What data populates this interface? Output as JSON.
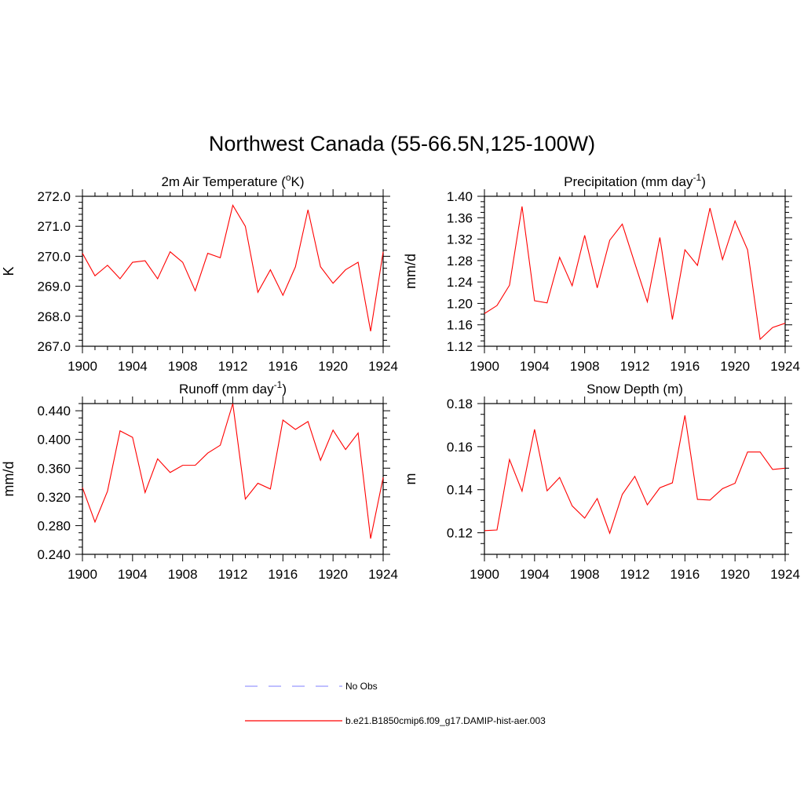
{
  "figure": {
    "title": "Northwest Canada (55-66.5N,125-100W)"
  },
  "legend": {
    "items": [
      {
        "label": "No Obs",
        "color": "#9999ff",
        "style": "dashed"
      },
      {
        "label": "b.e21.B1850cmip6.f09_g17.DAMIP-hist-aer.003",
        "color": "#ff0000",
        "style": "solid"
      }
    ]
  },
  "chart_data": [
    {
      "type": "line",
      "title": "2m Air Temperature (",
      "title_super": "o",
      "title_suffix": "K)",
      "xlabel": "",
      "ylabel": "K",
      "xlim": [
        1900,
        1924
      ],
      "ylim": [
        267.0,
        272.0
      ],
      "x_ticks": [
        1900,
        1904,
        1908,
        1912,
        1916,
        1920,
        1924
      ],
      "y_ticks": [
        267.0,
        268.0,
        269.0,
        270.0,
        271.0,
        272.0
      ],
      "y_decimals": 1,
      "x_minor": 1,
      "y_minor": 0.2,
      "color": "#ff0000",
      "x": [
        1900,
        1901,
        1902,
        1903,
        1904,
        1905,
        1906,
        1907,
        1908,
        1909,
        1910,
        1911,
        1912,
        1913,
        1914,
        1915,
        1916,
        1917,
        1918,
        1919,
        1920,
        1921,
        1922,
        1923,
        1924
      ],
      "values": [
        270.1,
        269.35,
        269.7,
        269.25,
        269.8,
        269.85,
        269.25,
        270.15,
        269.8,
        268.85,
        270.1,
        269.95,
        271.7,
        271.0,
        268.8,
        269.55,
        268.7,
        269.65,
        271.55,
        269.65,
        269.1,
        269.55,
        269.8,
        267.5,
        270.15
      ]
    },
    {
      "type": "line",
      "title": "Precipitation (mm day",
      "title_super": "-1",
      "title_suffix": ")",
      "xlabel": "",
      "ylabel": "mm/d",
      "xlim": [
        1900,
        1924
      ],
      "ylim": [
        1.12,
        1.4
      ],
      "x_ticks": [
        1900,
        1904,
        1908,
        1912,
        1916,
        1920,
        1924
      ],
      "y_ticks": [
        1.12,
        1.16,
        1.2,
        1.24,
        1.28,
        1.32,
        1.36,
        1.4
      ],
      "y_decimals": 2,
      "x_minor": 1,
      "y_minor": 0.01,
      "color": "#ff0000",
      "x": [
        1900,
        1901,
        1902,
        1903,
        1904,
        1905,
        1906,
        1907,
        1908,
        1909,
        1910,
        1911,
        1912,
        1913,
        1914,
        1915,
        1916,
        1917,
        1918,
        1919,
        1920,
        1921,
        1922,
        1923,
        1924
      ],
      "values": [
        1.181,
        1.196,
        1.234,
        1.381,
        1.205,
        1.201,
        1.286,
        1.233,
        1.327,
        1.229,
        1.318,
        1.348,
        1.275,
        1.203,
        1.323,
        1.17,
        1.3,
        1.271,
        1.378,
        1.282,
        1.354,
        1.3,
        1.133,
        1.155,
        1.163
      ]
    },
    {
      "type": "line",
      "title": "Runoff (mm day",
      "title_super": "-1",
      "title_suffix": ")",
      "xlabel": "",
      "ylabel": "mm/d",
      "xlim": [
        1900,
        1924
      ],
      "ylim": [
        0.24,
        0.45
      ],
      "x_ticks": [
        1900,
        1904,
        1908,
        1912,
        1916,
        1920,
        1924
      ],
      "y_ticks": [
        0.24,
        0.28,
        0.32,
        0.36,
        0.4,
        0.44
      ],
      "y_decimals": 3,
      "x_minor": 1,
      "y_minor": 0.01,
      "color": "#ff0000",
      "x": [
        1900,
        1901,
        1902,
        1903,
        1904,
        1905,
        1906,
        1907,
        1908,
        1909,
        1910,
        1911,
        1912,
        1913,
        1914,
        1915,
        1916,
        1917,
        1918,
        1919,
        1920,
        1921,
        1922,
        1923,
        1924
      ],
      "values": [
        0.333,
        0.285,
        0.328,
        0.412,
        0.403,
        0.326,
        0.373,
        0.354,
        0.364,
        0.364,
        0.381,
        0.392,
        0.45,
        0.317,
        0.339,
        0.331,
        0.427,
        0.414,
        0.425,
        0.371,
        0.413,
        0.386,
        0.409,
        0.262,
        0.347
      ]
    },
    {
      "type": "line",
      "title": "Snow Depth (m)",
      "title_super": "",
      "title_suffix": "",
      "xlabel": "",
      "ylabel": "m",
      "xlim": [
        1900,
        1924
      ],
      "ylim": [
        0.11,
        0.18
      ],
      "x_ticks": [
        1900,
        1904,
        1908,
        1912,
        1916,
        1920,
        1924
      ],
      "y_ticks": [
        0.12,
        0.14,
        0.16,
        0.18
      ],
      "y_decimals": 2,
      "x_minor": 1,
      "y_minor": 0.005,
      "color": "#ff0000",
      "x": [
        1900,
        1901,
        1902,
        1903,
        1904,
        1905,
        1906,
        1907,
        1908,
        1909,
        1910,
        1911,
        1912,
        1913,
        1914,
        1915,
        1916,
        1917,
        1918,
        1919,
        1920,
        1921,
        1922,
        1923,
        1924
      ],
      "values": [
        0.121,
        0.1213,
        0.154,
        0.1393,
        0.168,
        0.1395,
        0.1457,
        0.1325,
        0.1268,
        0.1359,
        0.1198,
        0.1378,
        0.1462,
        0.133,
        0.1409,
        0.1432,
        0.1745,
        0.1355,
        0.1352,
        0.1405,
        0.143,
        0.1575,
        0.1575,
        0.1494,
        0.15
      ]
    }
  ]
}
